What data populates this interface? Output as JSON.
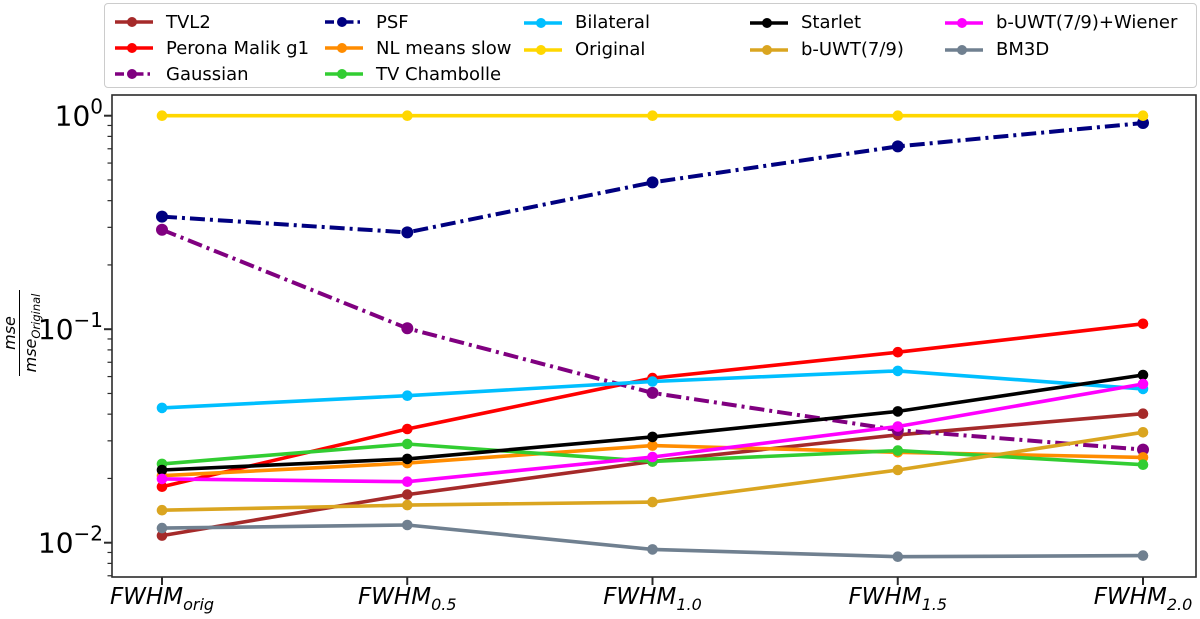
{
  "figure": {
    "background": "#ffffff",
    "ylabel": {
      "numerator": "mse",
      "denominator_base": "mse",
      "denominator_sub": "Original"
    },
    "y_ticks": [
      {
        "base": "10",
        "exp": "0",
        "value": 1.0
      },
      {
        "base": "10",
        "exp": "−1",
        "value": 0.1
      },
      {
        "base": "10",
        "exp": "−2",
        "value": 0.01
      }
    ]
  },
  "chart_data": {
    "type": "line",
    "yscale": "log",
    "ylim": [
      0.0069,
      1.26
    ],
    "ylabel": "mse/mse_Original",
    "xlabel": "",
    "grid": false,
    "legend_position": "top",
    "x_categories": [
      "FWHM_orig",
      "FWHM_0.5",
      "FWHM_1.0",
      "FWHM_1.5",
      "FWHM_2.0"
    ],
    "x_categories_display": [
      {
        "base": "FWHM",
        "sub": "orig"
      },
      {
        "base": "FWHM",
        "sub": "0.5"
      },
      {
        "base": "FWHM",
        "sub": "1.0"
      },
      {
        "base": "FWHM",
        "sub": "1.5"
      },
      {
        "base": "FWHM",
        "sub": "2.0"
      }
    ],
    "series": [
      {
        "name": "TVL2",
        "color": "#A52A2A",
        "dash": "solid",
        "values": [
          0.0108,
          0.0168,
          0.024,
          0.032,
          0.0402
        ]
      },
      {
        "name": "Perona Malik g1",
        "color": "#FF0000",
        "dash": "solid",
        "values": [
          0.0183,
          0.0341,
          0.059,
          0.078,
          0.106
        ]
      },
      {
        "name": "Gaussian",
        "color": "#800080",
        "dash": "dashdot",
        "values": [
          0.2925,
          0.101,
          0.0503,
          0.0337,
          0.0273
        ]
      },
      {
        "name": "PSF",
        "color": "#000080",
        "dash": "dashdot",
        "values": [
          0.337,
          0.284,
          0.487,
          0.718,
          0.924
        ]
      },
      {
        "name": "NL means slow",
        "color": "#FF8C00",
        "dash": "solid",
        "values": [
          0.0206,
          0.0236,
          0.0285,
          0.0265,
          0.0251
        ]
      },
      {
        "name": "TV Chambolle",
        "color": "#32CD32",
        "dash": "solid",
        "values": [
          0.0234,
          0.029,
          0.024,
          0.027,
          0.0232
        ]
      },
      {
        "name": "Bilateral",
        "color": "#00BFFF",
        "dash": "solid",
        "values": [
          0.0428,
          0.0488,
          0.0569,
          0.0638,
          0.0525
        ]
      },
      {
        "name": "Original",
        "color": "#FFD700",
        "dash": "solid",
        "values": [
          1.0,
          1.0,
          1.0,
          1.0,
          1.0
        ]
      },
      {
        "name": "Starlet",
        "color": "#000000",
        "dash": "solid",
        "values": [
          0.0219,
          0.0247,
          0.0313,
          0.0412,
          0.061
        ]
      },
      {
        "name": "b-UWT(7/9)",
        "color": "#DAA520",
        "dash": "solid",
        "values": [
          0.0142,
          0.015,
          0.0155,
          0.0219,
          0.0329
        ]
      },
      {
        "name": "b-UWT(7/9)+Wiener",
        "color": "#FF00FF",
        "dash": "solid",
        "values": [
          0.0199,
          0.0193,
          0.0252,
          0.035,
          0.0554
        ]
      },
      {
        "name": "BM3D",
        "color": "#708090",
        "dash": "solid",
        "values": [
          0.0117,
          0.0121,
          0.0093,
          0.0086,
          0.0087
        ]
      }
    ],
    "legend_columns": [
      [
        0,
        1,
        2
      ],
      [
        3,
        4,
        5
      ],
      [
        6,
        7
      ],
      [
        8,
        9
      ],
      [
        10,
        11
      ]
    ]
  }
}
